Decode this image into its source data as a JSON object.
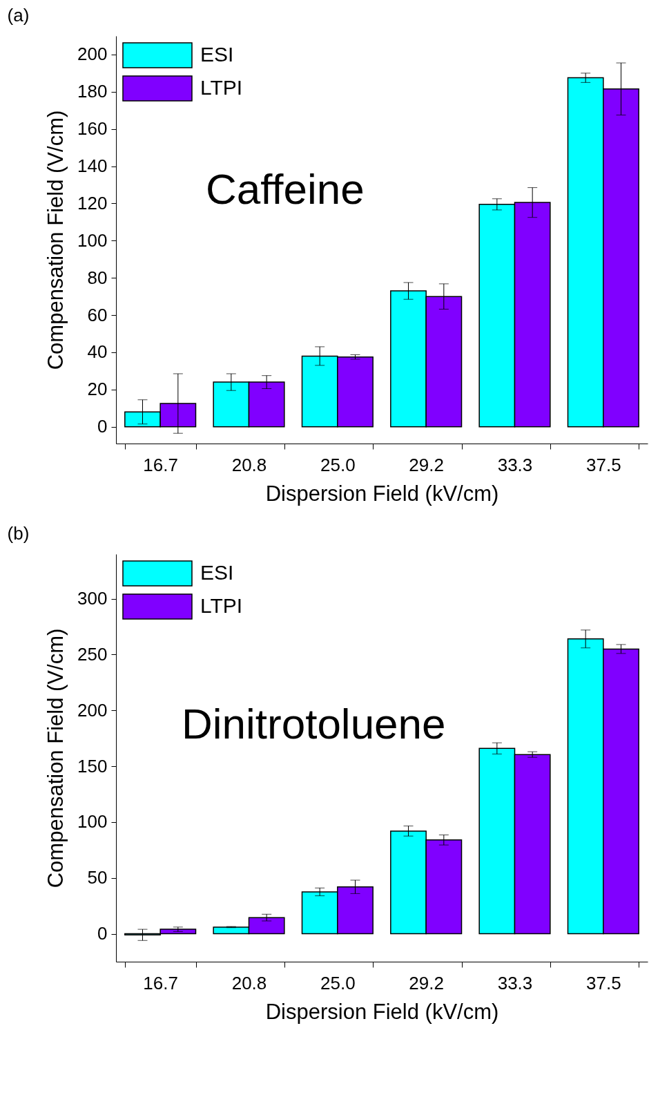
{
  "chart_data": [
    {
      "type": "bar",
      "title": "(a)",
      "xlabel": "Dispersion Field (kV/cm)",
      "ylabel": "Compensation Field (V/cm)",
      "annotations": [
        "Caffeine"
      ],
      "categories": [
        "16.7",
        "20.8",
        "25.0",
        "29.2",
        "33.3",
        "37.5"
      ],
      "series": [
        {
          "name": "ESI",
          "color": "#00ffff",
          "values": [
            8,
            24,
            38,
            73,
            119.5,
            187.5
          ],
          "errors": [
            6.5,
            4.5,
            5,
            4.5,
            3,
            2.5
          ]
        },
        {
          "name": "LTPI",
          "color": "#8000ff",
          "values": [
            12.5,
            24,
            37.5,
            70,
            120.5,
            181.5
          ],
          "errors": [
            16,
            3.5,
            1.2,
            6.8,
            8,
            14
          ]
        }
      ],
      "ylim": [
        -9,
        210
      ],
      "yticks": [
        0,
        20,
        40,
        60,
        80,
        100,
        120,
        140,
        160,
        180,
        200
      ],
      "grid": false,
      "legend": "top left"
    },
    {
      "type": "bar",
      "title": "(b)",
      "xlabel": "Dispersion Field (kV/cm)",
      "ylabel": "Compensation Field (V/cm)",
      "annotations": [
        "Dinitrotoluene"
      ],
      "categories": [
        "16.7",
        "20.8",
        "25.0",
        "29.2",
        "33.3",
        "37.5"
      ],
      "series": [
        {
          "name": "ESI",
          "color": "#00ffff",
          "values": [
            -1,
            6,
            37.5,
            92,
            166,
            264
          ],
          "errors": [
            5,
            0.5,
            3.5,
            4.5,
            5,
            8
          ]
        },
        {
          "name": "LTPI",
          "color": "#8000ff",
          "values": [
            4,
            14.5,
            42,
            84,
            160.5,
            255
          ],
          "errors": [
            2,
            3,
            6,
            4.5,
            2.5,
            4
          ]
        }
      ],
      "ylim": [
        -25,
        340
      ],
      "yticks": [
        0,
        50,
        100,
        150,
        200,
        250,
        300
      ],
      "grid": false,
      "legend": "top left"
    }
  ]
}
